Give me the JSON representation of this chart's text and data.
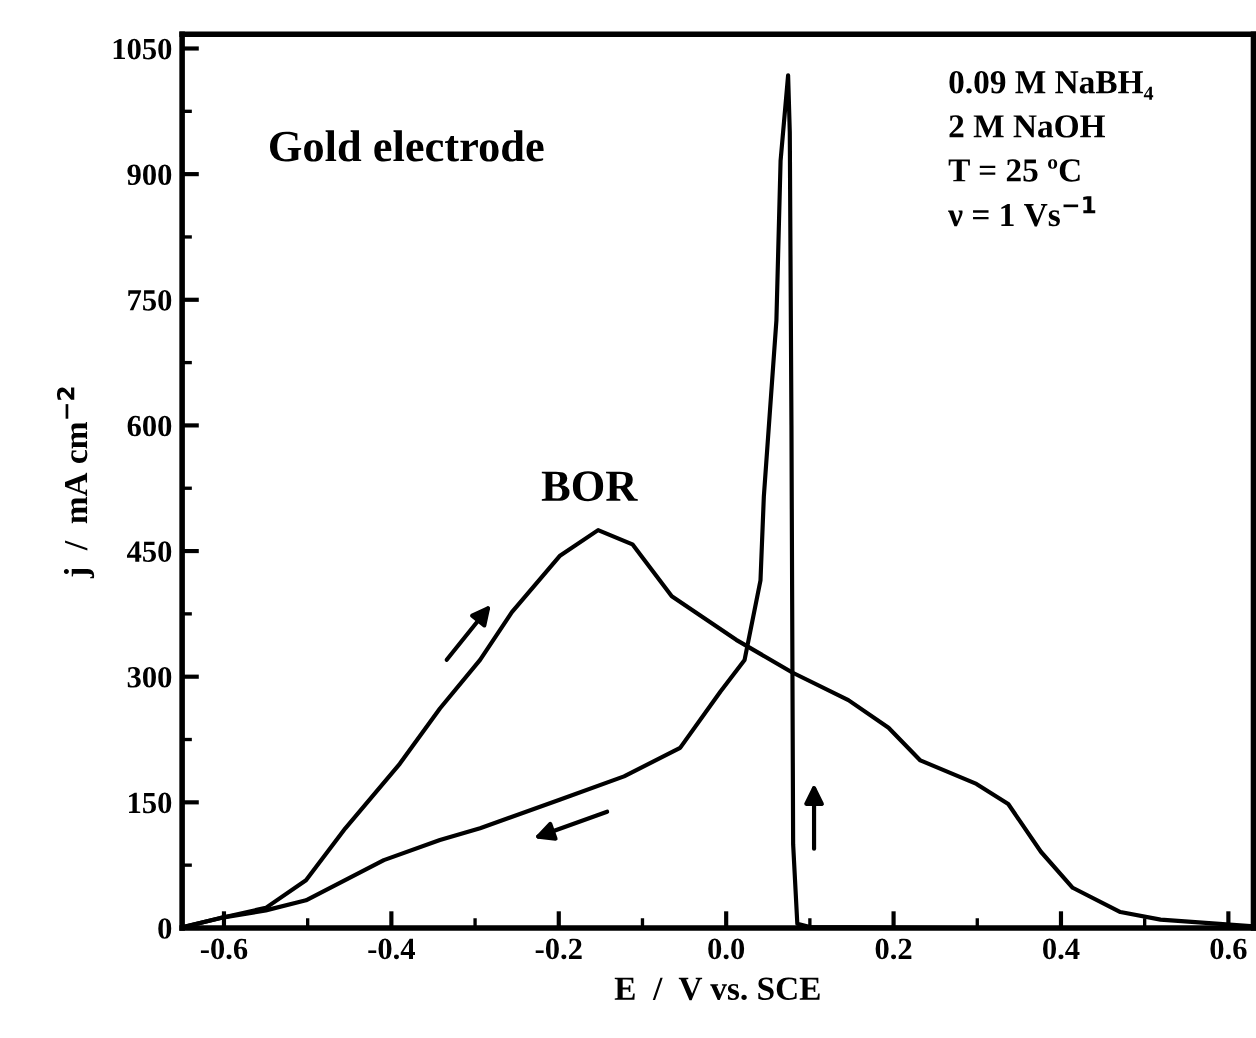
{
  "chart_data": {
    "type": "line",
    "xlabel": "E  /  V vs. SCE",
    "ylabel": "j  /  mA cm$^{−2}$",
    "xlim": [
      -0.65,
      0.63
    ],
    "ylim": [
      0,
      1067
    ],
    "xticks": [
      {
        "value": -0.6,
        "label": "-0.6"
      },
      {
        "value": -0.4,
        "label": "-0.4"
      },
      {
        "value": -0.2,
        "label": "-0.2"
      },
      {
        "value": 0.0,
        "label": "0.0"
      },
      {
        "value": 0.2,
        "label": "0.2"
      },
      {
        "value": 0.4,
        "label": "0.4"
      },
      {
        "value": 0.6,
        "label": "0.6"
      }
    ],
    "yticks": [
      0,
      150,
      300,
      450,
      600,
      750,
      900,
      1050
    ],
    "grid": false,
    "marker": "none",
    "line_style": "solid",
    "series": [
      {
        "color": "#000000",
        "x": [
          -0.649,
          -0.604,
          -0.55,
          -0.502,
          -0.455,
          -0.39,
          -0.342,
          -0.294,
          -0.256,
          -0.199,
          -0.153,
          -0.112,
          -0.065,
          0.012,
          0.079,
          0.146,
          0.194,
          0.232,
          0.299,
          0.337,
          0.376,
          0.414,
          0.471,
          0.519,
          0.629
        ],
        "values": [
          1,
          12,
          24,
          57,
          119,
          196,
          262,
          320,
          377,
          444,
          475,
          458,
          396,
          344,
          305,
          272,
          239,
          200,
          172,
          148,
          91,
          48,
          19,
          10,
          2
        ]
      },
      {
        "color": "#000000",
        "x": [
          0.629,
          0.3,
          0.1,
          0.085,
          0.08,
          0.078,
          0.076,
          0.074,
          0.065,
          0.06,
          0.045,
          0.041,
          0.022,
          -0.007,
          -0.055,
          -0.122,
          -0.199,
          -0.294,
          -0.342,
          -0.409,
          -0.502,
          -0.55,
          -0.604,
          -0.649
        ],
        "values": [
          0,
          0,
          1,
          5,
          100,
          600,
          950,
          1018,
          916,
          725,
          515,
          415,
          320,
          282,
          215,
          181,
          153,
          119,
          105,
          81,
          33,
          21,
          12,
          1
        ]
      }
    ],
    "annotations": [
      "Gold electrode",
      "BOR",
      "0.09 M NaBH₄\n2 M NaOH\nT = 25 ºC\nν = 1 Vs$^{−1}$"
    ]
  }
}
